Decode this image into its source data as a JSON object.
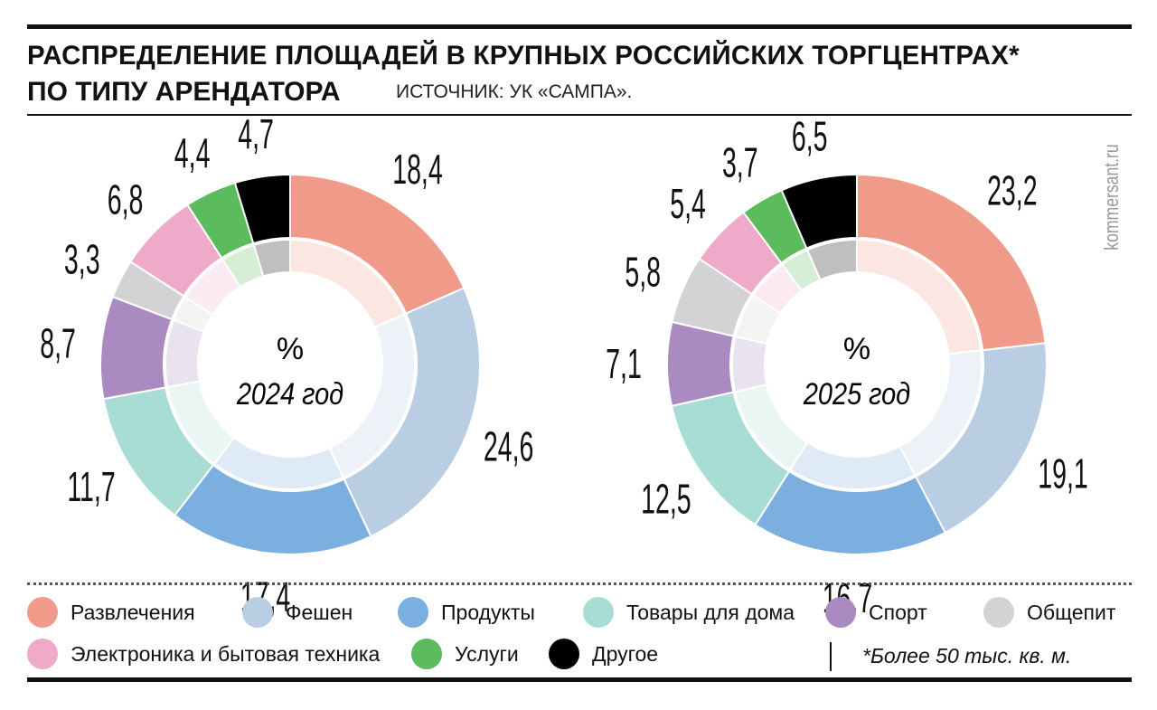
{
  "header": {
    "title_line1": "РАСПРЕДЕЛЕНИЕ ПЛОЩАДЕЙ В КРУПНЫХ РОССИЙСКИХ ТОРГЦЕНТРАХ*",
    "title_line2": "ПО ТИПУ АРЕНДАТОРА",
    "source": "ИСТОЧНИК: УК «САМПА».",
    "watermark": "kommersant.ru"
  },
  "footnote": "*Более 50 тыс. кв. м.",
  "chart_data": [
    {
      "type": "pie",
      "subtype": "donut",
      "unit_label": "%",
      "title": "2024 год",
      "categories": [
        "Развлечения",
        "Фешен",
        "Продукты",
        "Товары для дома",
        "Спорт",
        "Общепит",
        "Электроника и бытовая техника",
        "Услуги",
        "Другое"
      ],
      "values": [
        18.4,
        24.6,
        17.4,
        11.7,
        8.7,
        3.3,
        6.8,
        4.4,
        4.7
      ],
      "labels": [
        "18,4",
        "24,6",
        "17,4",
        "11,7",
        "8,7",
        "3,3",
        "6,8",
        "4,4",
        "4,7"
      ]
    },
    {
      "type": "pie",
      "subtype": "donut",
      "unit_label": "%",
      "title": "2025 год",
      "categories": [
        "Развлечения",
        "Фешен",
        "Продукты",
        "Товары для дома",
        "Спорт",
        "Общепит",
        "Электроника и бытовая техника",
        "Услуги",
        "Другое"
      ],
      "values": [
        23.2,
        19.1,
        16.7,
        12.5,
        7.1,
        5.8,
        5.4,
        3.7,
        6.5
      ],
      "labels": [
        "23,2",
        "19,1",
        "16,7",
        "12,5",
        "7,1",
        "5,8",
        "5,4",
        "3,7",
        "6,5"
      ]
    }
  ],
  "legend": [
    {
      "label": "Развлечения",
      "color": "#f09a8a"
    },
    {
      "label": "Фешен",
      "color": "#b9cde3"
    },
    {
      "label": "Продукты",
      "color": "#7aafe0"
    },
    {
      "label": "Товары для дома",
      "color": "#a8ddd5"
    },
    {
      "label": "Спорт",
      "color": "#a98bc1"
    },
    {
      "label": "Общепит",
      "color": "#d3d3d5"
    },
    {
      "label": "Электроника и бытовая техника",
      "color": "#eeaac8"
    },
    {
      "label": "Услуги",
      "color": "#5cbb5c"
    },
    {
      "label": "Другое",
      "color": "#000000"
    }
  ]
}
